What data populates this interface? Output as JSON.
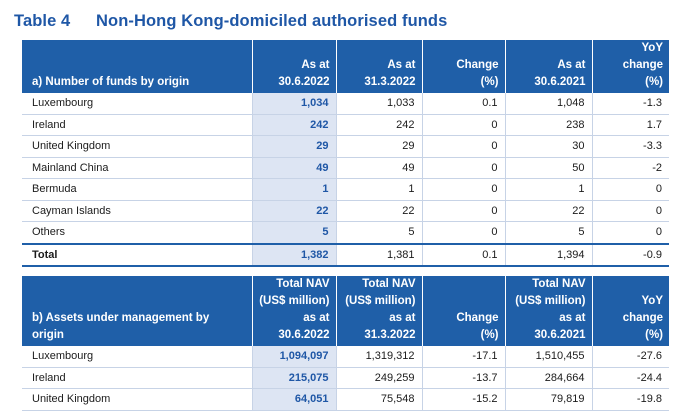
{
  "title": {
    "number": "Table 4",
    "text": "Non-Hong Kong-domiciled authorised funds"
  },
  "table_a": {
    "headers": [
      {
        "lines": [
          "a) Number of funds by origin"
        ]
      },
      {
        "lines": [
          "As at",
          "30.6.2022"
        ]
      },
      {
        "lines": [
          "As at",
          "31.3.2022"
        ]
      },
      {
        "lines": [
          "Change",
          "(%)"
        ]
      },
      {
        "lines": [
          "As at",
          "30.6.2021"
        ]
      },
      {
        "lines": [
          "YoY",
          "change",
          "(%)"
        ]
      }
    ],
    "rows": [
      [
        "Luxembourg",
        "1,034",
        "1,033",
        "0.1",
        "1,048",
        "-1.3"
      ],
      [
        "Ireland",
        "242",
        "242",
        "0",
        "238",
        "1.7"
      ],
      [
        "United Kingdom",
        "29",
        "29",
        "0",
        "30",
        "-3.3"
      ],
      [
        "Mainland China",
        "49",
        "49",
        "0",
        "50",
        "-2"
      ],
      [
        "Bermuda",
        "1",
        "1",
        "0",
        "1",
        "0"
      ],
      [
        "Cayman Islands",
        "22",
        "22",
        "0",
        "22",
        "0"
      ],
      [
        "Others",
        "5",
        "5",
        "0",
        "5",
        "0"
      ],
      [
        "Total",
        "1,382",
        "1,381",
        "0.1",
        "1,394",
        "-0.9"
      ]
    ]
  },
  "table_b": {
    "headers": [
      {
        "lines": [
          "b) Assets under management by",
          "origin"
        ]
      },
      {
        "lines": [
          "Total NAV",
          "(US$ million)",
          "as at",
          "30.6.2022"
        ]
      },
      {
        "lines": [
          "Total NAV",
          "(US$ million)",
          "as at",
          "31.3.2022"
        ]
      },
      {
        "lines": [
          "Change",
          "(%)"
        ]
      },
      {
        "lines": [
          "Total NAV",
          "(US$ million)",
          "as at",
          "30.6.2021"
        ]
      },
      {
        "lines": [
          "YoY",
          "change",
          "(%)"
        ]
      }
    ],
    "rows": [
      [
        "Luxembourg",
        "1,094,097",
        "1,319,312",
        "-17.1",
        "1,510,455",
        "-27.6"
      ],
      [
        "Ireland",
        "215,075",
        "249,259",
        "-13.7",
        "284,664",
        "-24.4"
      ],
      [
        "United Kingdom",
        "64,051",
        "75,548",
        "-15.2",
        "79,819",
        "-19.8"
      ]
    ]
  }
}
